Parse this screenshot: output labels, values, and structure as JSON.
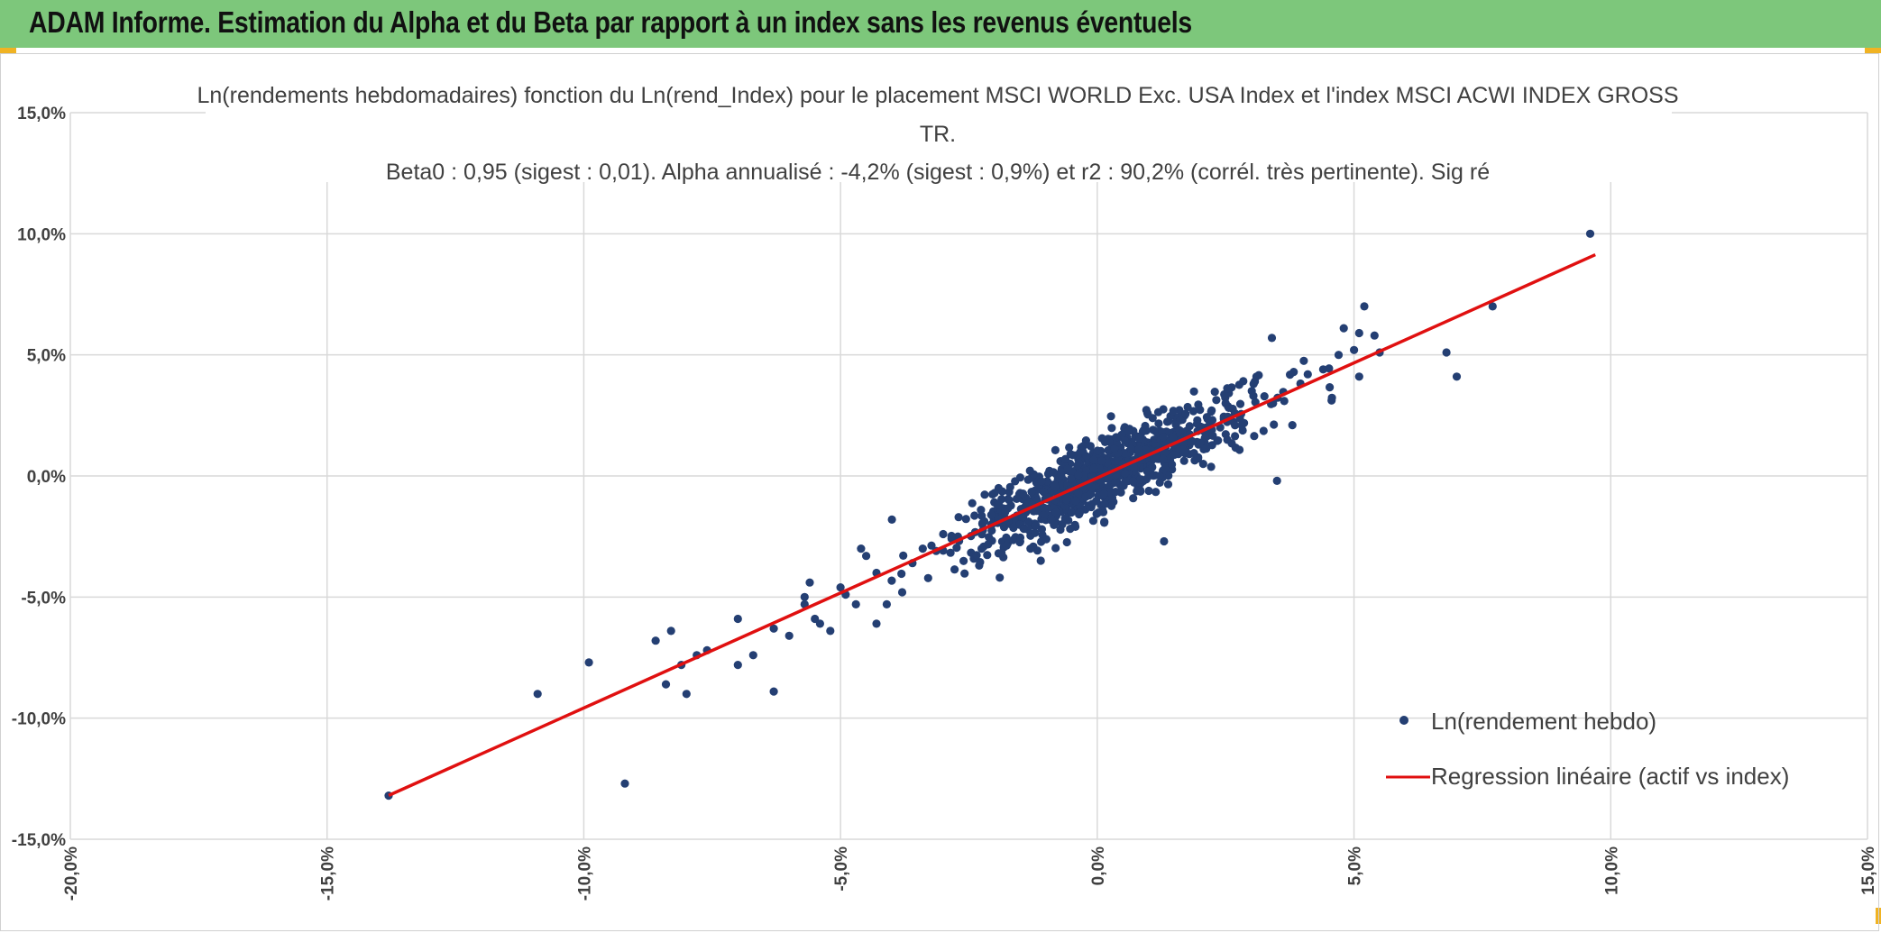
{
  "header": {
    "title": "ADAM Informe. Estimation du Alpha et du Beta par rapport à un index sans les revenus éventuels"
  },
  "colors": {
    "banner": "#7dc77b",
    "marker": "#243f73",
    "regression": "#e01010",
    "grid": "#d9d9d9",
    "text": "#404040"
  },
  "chart_data": {
    "type": "scatter",
    "title_lines": [
      "Ln(rendements hebdomadaires) fonction du Ln(rend_Index) pour le placement MSCI WORLD Exc. USA Index et l'index MSCI ACWI INDEX GROSS",
      "TR.",
      "Beta0 : 0,95 (sigest : 0,01). Alpha annualisé : -4,2% (sigest : 0,9%) et r2 : 90,2% (corrél. très pertinente). Sig ré"
    ],
    "xlim": [
      -0.2,
      0.15
    ],
    "ylim": [
      -0.15,
      0.15
    ],
    "x_ticks": [
      "-20,0%",
      "-15,0%",
      "-10,0%",
      "-5,0%",
      "0,0%",
      "5,0%",
      "10,0%",
      "15,0%"
    ],
    "y_ticks": [
      "15,0%",
      "10,0%",
      "5,0%",
      "0,0%",
      "-5,0%",
      "-10,0%",
      "-15,0%"
    ],
    "legend": [
      {
        "label": "Ln(rendement hebdo)",
        "kind": "marker"
      },
      {
        "label": "Regression linéaire (actif vs index)",
        "kind": "line"
      }
    ],
    "regression": {
      "name": "Regression linéaire (actif vs index)",
      "beta": 0.95,
      "alpha_weekly": -0.0008,
      "x_range": [
        -0.138,
        0.097
      ]
    },
    "series": [
      {
        "name": "Ln(rendement hebdo)",
        "outliers": [
          [
            -0.138,
            -0.132
          ],
          [
            -0.109,
            -0.09
          ],
          [
            -0.099,
            -0.077
          ],
          [
            -0.092,
            -0.127
          ],
          [
            -0.086,
            -0.068
          ],
          [
            -0.084,
            -0.086
          ],
          [
            -0.083,
            -0.064
          ],
          [
            -0.08,
            -0.09
          ],
          [
            -0.081,
            -0.078
          ],
          [
            -0.078,
            -0.074
          ],
          [
            -0.076,
            -0.072
          ],
          [
            -0.07,
            -0.059
          ],
          [
            -0.07,
            -0.078
          ],
          [
            -0.067,
            -0.074
          ],
          [
            -0.063,
            -0.089
          ],
          [
            -0.063,
            -0.063
          ],
          [
            -0.06,
            -0.066
          ],
          [
            -0.057,
            -0.05
          ],
          [
            -0.057,
            -0.053
          ],
          [
            -0.056,
            -0.044
          ],
          [
            -0.055,
            -0.059
          ],
          [
            -0.054,
            -0.061
          ],
          [
            -0.052,
            -0.064
          ],
          [
            -0.05,
            -0.046
          ],
          [
            -0.049,
            -0.049
          ],
          [
            -0.047,
            -0.053
          ],
          [
            -0.046,
            -0.03
          ],
          [
            -0.045,
            -0.033
          ],
          [
            -0.043,
            -0.04
          ],
          [
            -0.043,
            -0.061
          ],
          [
            -0.041,
            -0.053
          ],
          [
            -0.04,
            -0.018
          ],
          [
            -0.038,
            -0.048
          ],
          [
            -0.036,
            -0.036
          ],
          [
            -0.034,
            -0.03
          ],
          [
            -0.03,
            -0.024
          ],
          [
            -0.027,
            -0.017
          ],
          [
            -0.023,
            -0.037
          ],
          [
            -0.019,
            -0.042
          ],
          [
            -0.018,
            -0.018
          ],
          [
            -0.015,
            -0.027
          ],
          [
            -0.013,
            -0.03
          ],
          [
            -0.011,
            -0.035
          ],
          [
            0.013,
            -0.027
          ],
          [
            0.025,
            0.03
          ],
          [
            0.031,
            0.041
          ],
          [
            0.034,
            0.057
          ],
          [
            0.035,
            -0.002
          ],
          [
            0.038,
            0.021
          ],
          [
            0.041,
            0.042
          ],
          [
            0.044,
            0.044
          ],
          [
            0.047,
            0.05
          ],
          [
            0.048,
            0.061
          ],
          [
            0.05,
            0.052
          ],
          [
            0.051,
            0.041
          ],
          [
            0.051,
            0.059
          ],
          [
            0.052,
            0.07
          ],
          [
            0.054,
            0.058
          ],
          [
            0.055,
            0.051
          ],
          [
            0.068,
            0.051
          ],
          [
            0.07,
            0.041
          ],
          [
            0.077,
            0.07
          ],
          [
            0.096,
            0.1
          ]
        ],
        "cloud": {
          "count": 900,
          "seed": 7,
          "x_mean": 0.002,
          "x_sd": 0.014,
          "beta": 0.95,
          "intercept": -0.0008,
          "resid_sd": 0.0075
        }
      }
    ]
  }
}
